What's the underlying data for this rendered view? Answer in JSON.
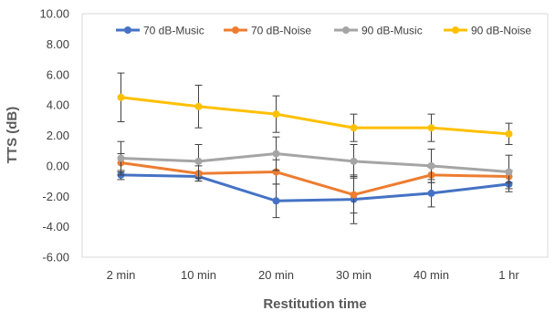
{
  "chart_data": {
    "type": "line",
    "title": "",
    "xlabel": "Restitution time",
    "ylabel": "TTS (dB)",
    "categories": [
      "2 min",
      "10 min",
      "20 min",
      "30 min",
      "40 min",
      "1 hr"
    ],
    "ylim": [
      -6,
      10
    ],
    "yticks": [
      "-6.00",
      "-4.00",
      "-2.00",
      "0.00",
      "2.00",
      "4.00",
      "6.00",
      "8.00",
      "10.00"
    ],
    "grid": false,
    "legend_position": "top",
    "series": [
      {
        "name": "70 dB-Music",
        "color": "#4472C4",
        "values": [
          -0.6,
          -0.7,
          -2.3,
          -2.2,
          -1.8,
          -1.2
        ],
        "errors": [
          0.3,
          0.3,
          1.1,
          1.6,
          0.9,
          0.5
        ]
      },
      {
        "name": "70 dB-Noise",
        "color": "#ED7D31",
        "values": [
          0.2,
          -0.5,
          -0.4,
          -1.9,
          -0.6,
          -0.7
        ],
        "errors": [
          0.6,
          0.5,
          0.8,
          1.2,
          0.5,
          0.4
        ]
      },
      {
        "name": "90 dB-Music",
        "color": "#A5A5A5",
        "values": [
          0.5,
          0.3,
          0.8,
          0.3,
          0.0,
          -0.4
        ],
        "errors": [
          1.1,
          1.1,
          1.1,
          1.1,
          1.1,
          1.1
        ]
      },
      {
        "name": "90 dB-Noise",
        "color": "#FFC000",
        "values": [
          4.5,
          3.9,
          3.4,
          2.5,
          2.5,
          2.1
        ],
        "errors": [
          1.6,
          1.4,
          1.2,
          0.9,
          0.9,
          0.7
        ]
      }
    ]
  }
}
